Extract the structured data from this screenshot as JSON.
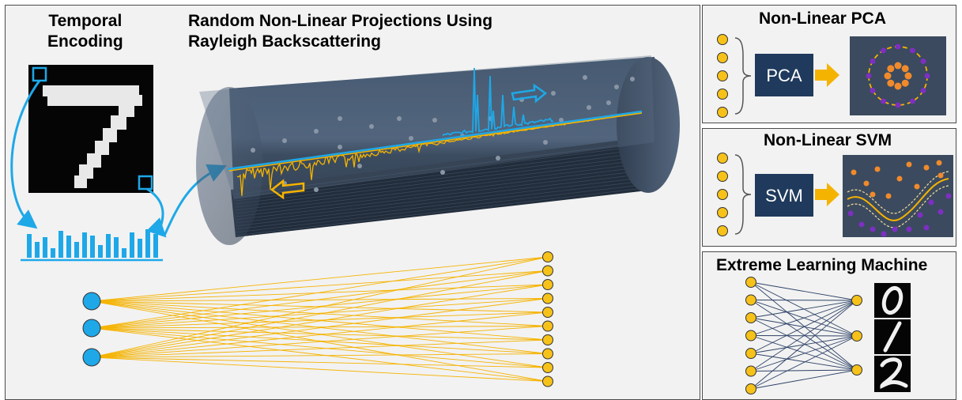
{
  "main": {
    "encoding_title_line1": "Temporal",
    "encoding_title_line2": "Encoding",
    "projection_title_line1": "Random Non-Linear Projections Using",
    "projection_title_line2": "Rayleigh Backscattering"
  },
  "pca_panel": {
    "title": "Non-Linear PCA",
    "box_label": "PCA"
  },
  "svm_panel": {
    "title": "Non-Linear SVM",
    "box_label": "SVM"
  },
  "elm_panel": {
    "title": "Extreme Learning Machine",
    "digits": [
      "0",
      "1",
      "2"
    ]
  },
  "colors": {
    "panel_bg": "#f2f2f2",
    "node_blue": "#1ea8e8",
    "node_gold": "#f6c21a",
    "box_navy": "#1f3a5c",
    "arrow_gold": "#f5b301",
    "fiber_dark": "#2b3a4e",
    "point_orange": "#f08a2c",
    "point_purple": "#7d2fc2",
    "net_line": "#2d4267"
  },
  "icons": [
    "digit-image",
    "bar-chart-icon",
    "fiber-cylinder",
    "neural-network-icon"
  ]
}
